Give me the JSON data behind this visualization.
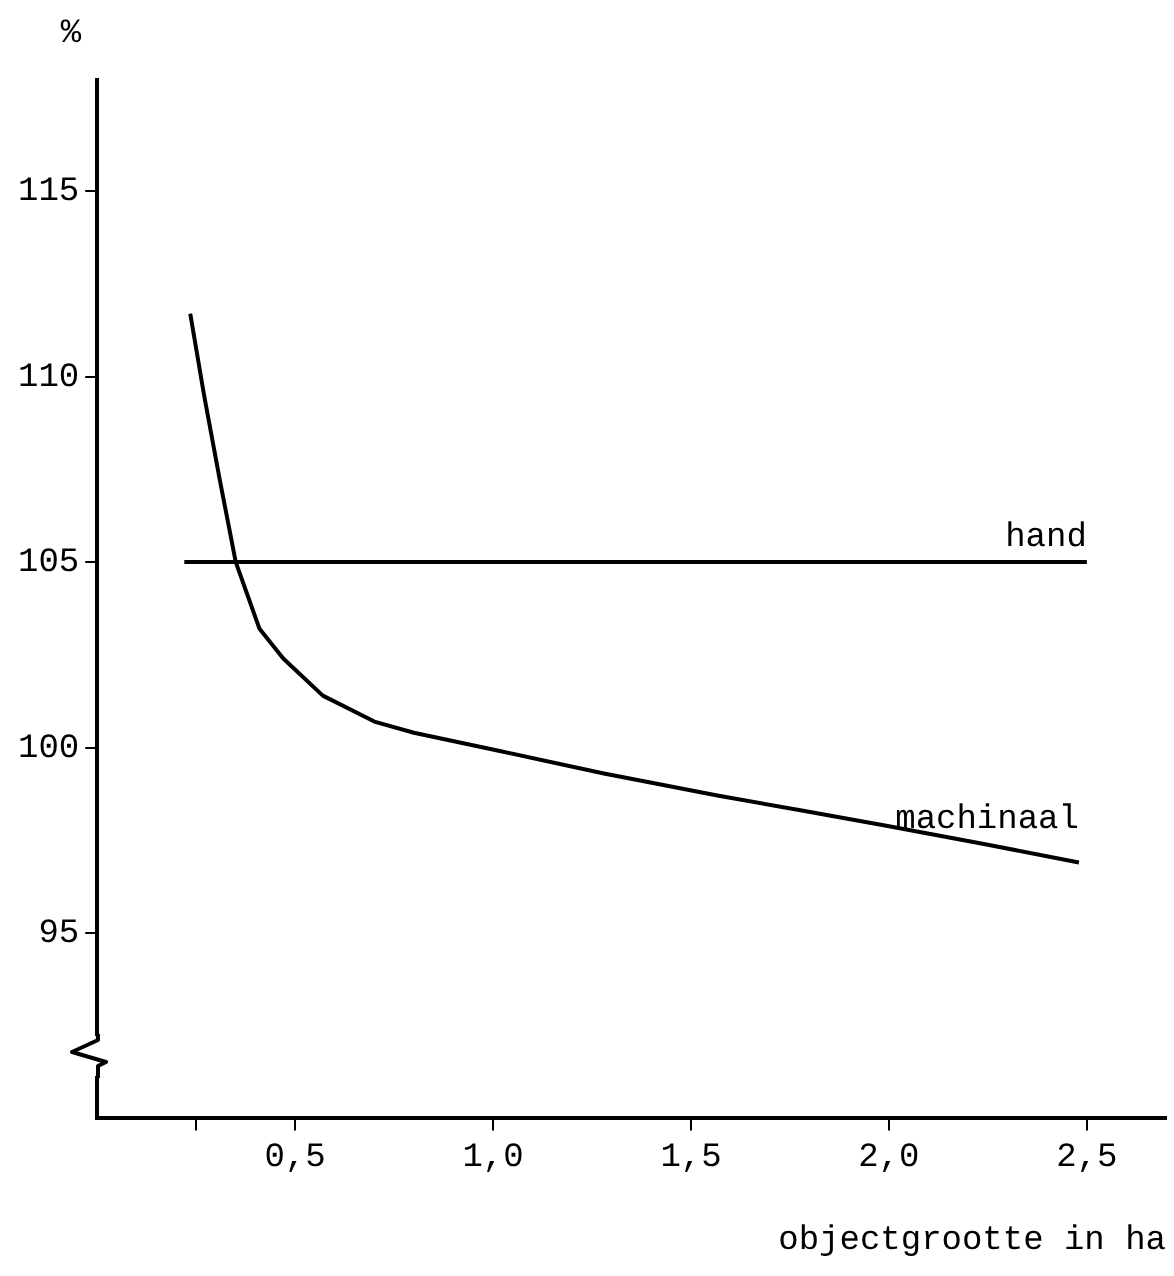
{
  "chart_data": {
    "type": "line",
    "xlabel": "objectgrootte in ha",
    "ylabel": "%",
    "xlim": [
      0,
      2.7
    ],
    "ylim": [
      90,
      118
    ],
    "xticks": [
      {
        "value": 0.25,
        "label": null
      },
      {
        "value": 0.5,
        "label": "0,5"
      },
      {
        "value": 1,
        "label": "1,0"
      },
      {
        "value": 1.5,
        "label": "1,5"
      },
      {
        "value": 2,
        "label": "2,0"
      },
      {
        "value": 2.5,
        "label": "2,5"
      }
    ],
    "yticks": [
      95,
      100,
      105,
      110,
      115
    ],
    "grid": false,
    "marker": "none",
    "line_style": "solid",
    "series": [
      {
        "name": "hand",
        "color": "#000000",
        "x": [
          0.22,
          2.5
        ],
        "values": [
          105,
          105
        ]
      },
      {
        "name": "machinaal",
        "color": "#000000",
        "x": [
          0.235,
          0.27,
          0.31,
          0.35,
          0.41,
          0.47,
          0.57,
          0.7,
          0.8,
          1.02,
          1.28,
          1.57,
          1.78,
          1.99,
          2.24,
          2.48
        ],
        "values": [
          111.7,
          109.5,
          107.2,
          105.0,
          103.2,
          102.4,
          101.4,
          100.7,
          100.4,
          99.9,
          99.3,
          98.7,
          98.3,
          97.9,
          97.4,
          96.9
        ]
      }
    ]
  }
}
